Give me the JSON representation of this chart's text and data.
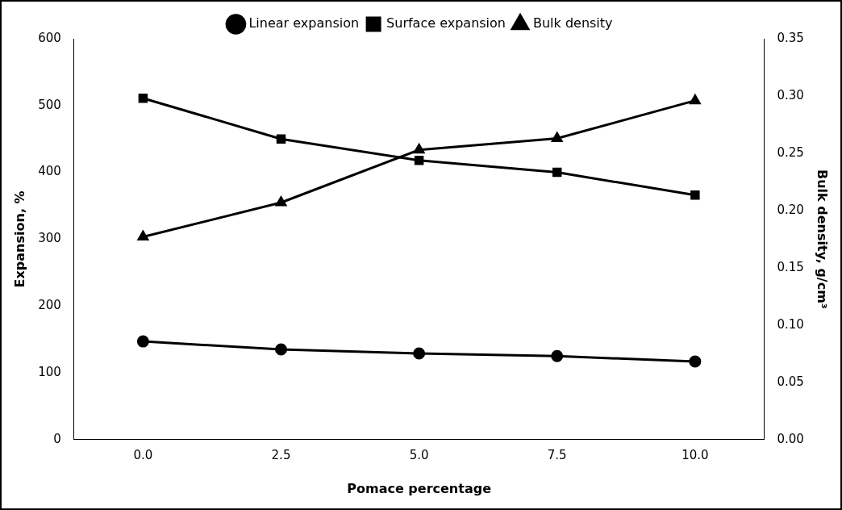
{
  "chart_data": {
    "type": "line",
    "xlabel": "Pomace percentage",
    "ylabel": "Expansion, %",
    "y2label": "Bulk density, g/cm³",
    "categories": [
      "0.0",
      "2.5",
      "5.0",
      "7.5",
      "10.0"
    ],
    "series": [
      {
        "name": "Linear expansion",
        "color": "#000000",
        "marker": "circle",
        "values": [
          147,
          135,
          129,
          125,
          117
        ]
      },
      {
        "name": "Surface expansion",
        "color": "#000000",
        "marker": "square",
        "values": [
          511,
          450,
          418,
          400,
          366
        ]
      },
      {
        "name": "Bulk density",
        "color": "#000000",
        "marker": "triangle",
        "axis": "y2",
        "values": [
          0.177,
          0.207,
          0.253,
          0.263,
          0.296
        ]
      }
    ],
    "ylim": [
      0,
      600
    ],
    "yticks": [
      0,
      100,
      200,
      300,
      400,
      500,
      600
    ],
    "y2lim": [
      0,
      0.35
    ],
    "y2ticks": [
      {
        "value": 0,
        "label": "0.00"
      },
      {
        "value": 0.05,
        "label": "0.05"
      },
      {
        "value": 0.1,
        "label": "0.10"
      },
      {
        "value": 0.15,
        "label": "0.15"
      },
      {
        "value": 0.2,
        "label": "0.20"
      },
      {
        "value": 0.25,
        "label": "0.25"
      },
      {
        "value": 0.3,
        "label": "0.30"
      },
      {
        "value": 0.35,
        "label": "0.35"
      }
    ],
    "grid": false,
    "legend": "top",
    "line_style": "solid"
  }
}
